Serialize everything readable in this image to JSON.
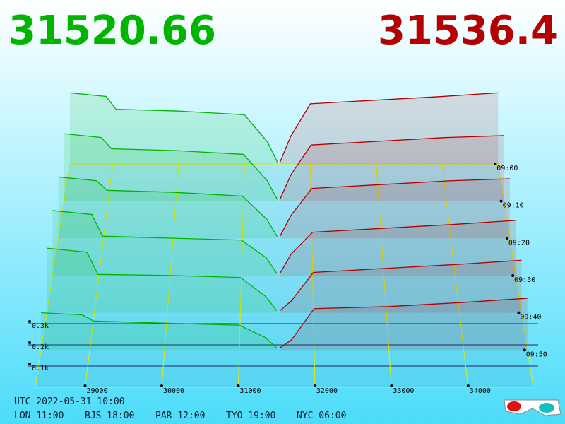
{
  "chart_data": {
    "type": "depth3d",
    "bid_price": 31520.66,
    "ask_price": 31536.4,
    "bid_color": "#00b400",
    "ask_color": "#b40000",
    "xlim": [
      28350,
      34850
    ],
    "xticks": [
      29000,
      30000,
      31000,
      32000,
      33000,
      34000
    ],
    "zlim": [
      0,
      400
    ],
    "zticks": [
      {
        "value": 100,
        "label": "0.1k"
      },
      {
        "value": 200,
        "label": "0.2k"
      },
      {
        "value": 300,
        "label": "0.3k"
      }
    ],
    "tlim": [
      "09:00",
      "10:00"
    ],
    "bid_prices": [
      28350,
      28900,
      29050,
      30000,
      31000,
      31350,
      31500
    ],
    "ask_prices": [
      31540,
      31700,
      32000,
      33000,
      34000,
      34850
    ],
    "slices": [
      {
        "time": "09:00",
        "bids": [
          390,
          370,
          300,
          290,
          270,
          120,
          10
        ],
        "asks": [
          10,
          150,
          330,
          350,
          370,
          390
        ]
      },
      {
        "time": "09:10",
        "bids": [
          360,
          340,
          280,
          270,
          250,
          110,
          10
        ],
        "asks": [
          10,
          140,
          300,
          320,
          340,
          350
        ]
      },
      {
        "time": "09:20",
        "bids": [
          320,
          300,
          250,
          240,
          220,
          100,
          10
        ],
        "asks": [
          10,
          120,
          260,
          280,
          300,
          310
        ]
      },
      {
        "time": "09:30",
        "bids": [
          330,
          310,
          200,
          190,
          180,
          90,
          10
        ],
        "asks": [
          10,
          110,
          220,
          240,
          260,
          280
        ]
      },
      {
        "time": "09:40",
        "bids": [
          320,
          300,
          190,
          185,
          175,
          80,
          10
        ],
        "asks": [
          10,
          60,
          200,
          220,
          240,
          260
        ]
      },
      {
        "time": "09:50",
        "bids": [
          180,
          170,
          140,
          130,
          120,
          60,
          10
        ],
        "asks": [
          10,
          50,
          200,
          210,
          230,
          250
        ]
      }
    ]
  },
  "footer": {
    "utc": "UTC 2022-05-31 10:00",
    "zones": [
      "LON 11:00",
      "BJS 18:00",
      "PAR 12:00",
      "TYO 19:00",
      "NYC 06:00"
    ]
  }
}
